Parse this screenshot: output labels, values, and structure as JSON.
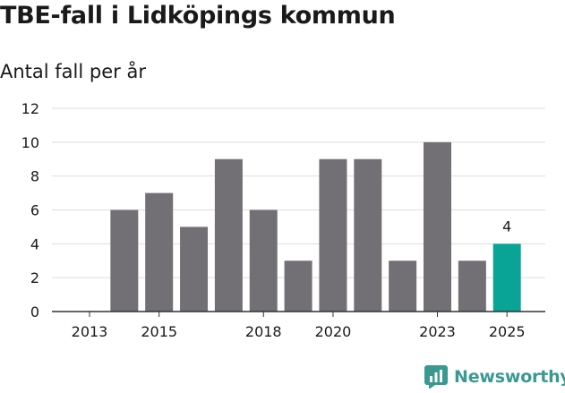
{
  "colors": {
    "bar": "#727075",
    "highlight": "#0aa496",
    "grid": "#dddddd",
    "axis": "#333333",
    "text": "#1a1a1a",
    "brand": "#3a9a92"
  },
  "brand": {
    "name": "Newsworthy",
    "icon": "bar-chart-logo-icon"
  },
  "chart_data": {
    "type": "bar",
    "title": "TBE-fall i Lidköpings kommun",
    "subtitle": "Antal fall per år",
    "xlabel": "",
    "ylabel": "Antal fall per år",
    "categories": [
      "2013",
      "2014",
      "2015",
      "2016",
      "2017",
      "2018",
      "2019",
      "2020",
      "2021",
      "2022",
      "2023",
      "2024",
      "2025"
    ],
    "values": [
      0,
      6,
      7,
      5,
      9,
      6,
      3,
      9,
      9,
      3,
      10,
      3,
      4
    ],
    "highlight_index": 12,
    "data_labels": [
      {
        "index": 12,
        "text": "4"
      }
    ],
    "x_tick_labels": [
      "2013",
      "2015",
      "2018",
      "2020",
      "2023",
      "2025"
    ],
    "y_ticks": [
      0,
      2,
      4,
      6,
      8,
      10,
      12
    ],
    "ylim": [
      0,
      12
    ],
    "grid": true
  }
}
